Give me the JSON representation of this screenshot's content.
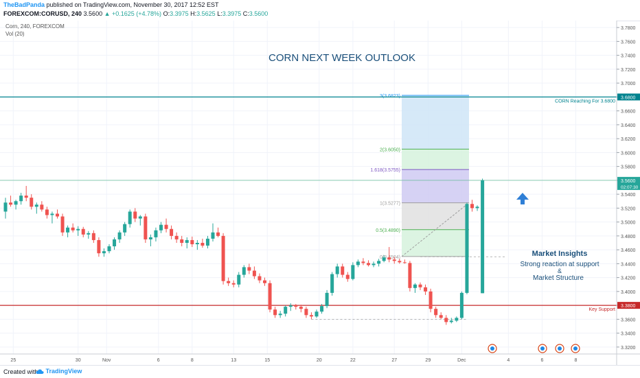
{
  "header": {
    "author": "TheBadPanda",
    "published": "published on TradingView.com, November 30, 2017 12:52 EST",
    "symbol": "FOREXCOM:CORUSD, 240",
    "last": "3.5600",
    "change": "▲ +0.1625 (+4.78%)",
    "o_label": "O:",
    "o_value": "3.3975",
    "h_label": "H:",
    "h_value": "3.5625",
    "l_label": "L:",
    "l_value": "3.3975",
    "c_label": "C:",
    "c_value": "3.5600"
  },
  "legend": {
    "symbol": "Corn, 240, FOREXCOM",
    "volume": "Vol (20)"
  },
  "footer": {
    "created": "Created with",
    "brand": "TradingView"
  },
  "colors": {
    "up": "#26a69a",
    "down": "#ef5350",
    "resistance": "#00838f",
    "support": "#c62828",
    "title": "#1a4f7a",
    "insight": "#1a4f7a",
    "arrow": "#2f7fd6"
  },
  "chart_data": {
    "type": "candlestick",
    "title": "CORN NEXT WEEK OUTLOOK",
    "ylim": [
      3.31,
      3.79
    ],
    "y_ticks": [
      "3.7800",
      "3.7600",
      "3.7400",
      "3.7200",
      "3.7000",
      "3.6800",
      "3.6600",
      "3.6400",
      "3.6200",
      "3.6000",
      "3.5800",
      "3.5600",
      "3.5400",
      "3.5200",
      "3.5000",
      "3.4800",
      "3.4600",
      "3.4400",
      "3.4200",
      "3.4000",
      "3.3800",
      "3.3600",
      "3.3400",
      "3.3200"
    ],
    "x_ticks": [
      {
        "label": "25",
        "pos": 1.5
      },
      {
        "label": "30",
        "pos": 14
      },
      {
        "label": "Nov",
        "pos": 19.5
      },
      {
        "label": "6",
        "pos": 29.5
      },
      {
        "label": "8",
        "pos": 36
      },
      {
        "label": "13",
        "pos": 44
      },
      {
        "label": "15",
        "pos": 50.5
      },
      {
        "label": "20",
        "pos": 60.5
      },
      {
        "label": "22",
        "pos": 67
      },
      {
        "label": "27",
        "pos": 75
      },
      {
        "label": "29",
        "pos": 81.5
      },
      {
        "label": "Dec",
        "pos": 88
      },
      {
        "label": "4",
        "pos": 97
      },
      {
        "label": "6",
        "pos": 103.5
      },
      {
        "label": "8",
        "pos": 110
      }
    ],
    "candles": [
      [
        3.515,
        3.535,
        3.505,
        3.528
      ],
      [
        3.528,
        3.538,
        3.522,
        3.525
      ],
      [
        3.525,
        3.532,
        3.518,
        3.53
      ],
      [
        3.53,
        3.542,
        3.525,
        3.538
      ],
      [
        3.538,
        3.552,
        3.53,
        3.535
      ],
      [
        3.535,
        3.54,
        3.518,
        3.522
      ],
      [
        3.522,
        3.528,
        3.512,
        3.525
      ],
      [
        3.525,
        3.53,
        3.515,
        3.518
      ],
      [
        3.518,
        3.522,
        3.505,
        3.51
      ],
      [
        3.51,
        3.515,
        3.498,
        3.512
      ],
      [
        3.512,
        3.518,
        3.505,
        3.508
      ],
      [
        3.508,
        3.512,
        3.48,
        3.485
      ],
      [
        3.485,
        3.495,
        3.478,
        3.492
      ],
      [
        3.492,
        3.498,
        3.485,
        3.488
      ],
      [
        3.488,
        3.494,
        3.48,
        3.49
      ],
      [
        3.49,
        3.493,
        3.478,
        3.482
      ],
      [
        3.482,
        3.487,
        3.476,
        3.484
      ],
      [
        3.484,
        3.488,
        3.47,
        3.474
      ],
      [
        3.474,
        3.478,
        3.45,
        3.455
      ],
      [
        3.455,
        3.462,
        3.45,
        3.458
      ],
      [
        3.458,
        3.468,
        3.455,
        3.465
      ],
      [
        3.465,
        3.478,
        3.46,
        3.475
      ],
      [
        3.475,
        3.488,
        3.47,
        3.485
      ],
      [
        3.485,
        3.5,
        3.48,
        3.497
      ],
      [
        3.497,
        3.518,
        3.492,
        3.515
      ],
      [
        3.515,
        3.52,
        3.5,
        3.505
      ],
      [
        3.505,
        3.51,
        3.495,
        3.508
      ],
      [
        3.508,
        3.512,
        3.47,
        3.475
      ],
      [
        3.475,
        3.482,
        3.465,
        3.478
      ],
      [
        3.478,
        3.492,
        3.472,
        3.488
      ],
      [
        3.488,
        3.5,
        3.484,
        3.496
      ],
      [
        3.496,
        3.505,
        3.485,
        3.49
      ],
      [
        3.49,
        3.495,
        3.475,
        3.48
      ],
      [
        3.48,
        3.485,
        3.47,
        3.475
      ],
      [
        3.475,
        3.48,
        3.465,
        3.47
      ],
      [
        3.47,
        3.478,
        3.462,
        3.474
      ],
      [
        3.474,
        3.479,
        3.464,
        3.468
      ],
      [
        3.468,
        3.474,
        3.46,
        3.47
      ],
      [
        3.47,
        3.476,
        3.463,
        3.466
      ],
      [
        3.466,
        3.48,
        3.462,
        3.476
      ],
      [
        3.476,
        3.498,
        3.472,
        3.485
      ],
      [
        3.485,
        3.492,
        3.478,
        3.48
      ],
      [
        3.48,
        3.484,
        3.41,
        3.415
      ],
      [
        3.415,
        3.42,
        3.408,
        3.412
      ],
      [
        3.412,
        3.416,
        3.406,
        3.41
      ],
      [
        3.41,
        3.428,
        3.406,
        3.424
      ],
      [
        3.424,
        3.438,
        3.42,
        3.435
      ],
      [
        3.435,
        3.44,
        3.425,
        3.43
      ],
      [
        3.43,
        3.436,
        3.418,
        3.422
      ],
      [
        3.422,
        3.426,
        3.412,
        3.416
      ],
      [
        3.416,
        3.42,
        3.408,
        3.412
      ],
      [
        3.412,
        3.416,
        3.37,
        3.374
      ],
      [
        3.374,
        3.378,
        3.362,
        3.366
      ],
      [
        3.366,
        3.372,
        3.362,
        3.368
      ],
      [
        3.368,
        3.38,
        3.364,
        3.378
      ],
      [
        3.378,
        3.383,
        3.372,
        3.38
      ],
      [
        3.38,
        3.382,
        3.374,
        3.378
      ],
      [
        3.378,
        3.381,
        3.37,
        3.375
      ],
      [
        3.375,
        3.378,
        3.362,
        3.366
      ],
      [
        3.366,
        3.37,
        3.36,
        3.364
      ],
      [
        3.364,
        3.374,
        3.362,
        3.371
      ],
      [
        3.371,
        3.382,
        3.368,
        3.379
      ],
      [
        3.379,
        3.402,
        3.376,
        3.398
      ],
      [
        3.398,
        3.428,
        3.394,
        3.425
      ],
      [
        3.425,
        3.44,
        3.42,
        3.436
      ],
      [
        3.436,
        3.44,
        3.42,
        3.424
      ],
      [
        3.424,
        3.428,
        3.414,
        3.418
      ],
      [
        3.418,
        3.442,
        3.416,
        3.438
      ],
      [
        3.438,
        3.446,
        3.435,
        3.443
      ],
      [
        3.443,
        3.448,
        3.438,
        3.441
      ],
      [
        3.441,
        3.445,
        3.436,
        3.438
      ],
      [
        3.438,
        3.443,
        3.435,
        3.44
      ],
      [
        3.44,
        3.447,
        3.436,
        3.444
      ],
      [
        3.444,
        3.452,
        3.442,
        3.449
      ],
      [
        3.449,
        3.464,
        3.442,
        3.446
      ],
      [
        3.446,
        3.45,
        3.44,
        3.444
      ],
      [
        3.444,
        3.447,
        3.44,
        3.442
      ],
      [
        3.442,
        3.446,
        3.44,
        3.441
      ],
      [
        3.441,
        3.444,
        3.4,
        3.405
      ],
      [
        3.405,
        3.412,
        3.398,
        3.41
      ],
      [
        3.41,
        3.413,
        3.402,
        3.406
      ],
      [
        3.406,
        3.41,
        3.395,
        3.4
      ],
      [
        3.4,
        3.404,
        3.37,
        3.375
      ],
      [
        3.375,
        3.378,
        3.362,
        3.366
      ],
      [
        3.366,
        3.37,
        3.36,
        3.362
      ],
      [
        3.362,
        3.366,
        3.352,
        3.356
      ],
      [
        3.356,
        3.362,
        3.354,
        3.358
      ],
      [
        3.358,
        3.364,
        3.356,
        3.362
      ],
      [
        3.362,
        3.4,
        3.36,
        3.398
      ],
      [
        3.398,
        3.528,
        3.396,
        3.526
      ],
      [
        3.526,
        3.532,
        3.515,
        3.52
      ],
      [
        3.52,
        3.524,
        3.516,
        3.522
      ],
      [
        3.3975,
        3.5625,
        3.3975,
        3.56
      ]
    ],
    "fib": {
      "levels": [
        {
          "ratio": "0",
          "value": 3.4504,
          "label": "0(3.4504)"
        },
        {
          "ratio": "0.5",
          "value": 3.489,
          "label": "0.5(3.4890)"
        },
        {
          "ratio": "1",
          "value": 3.5277,
          "label": "1(3.5277)"
        },
        {
          "ratio": "1.618",
          "value": 3.5755,
          "label": "1.618(3.5755)"
        },
        {
          "ratio": "2",
          "value": 3.605,
          "label": "2(3.6050)"
        },
        {
          "ratio": "3",
          "value": 3.6823,
          "label": "3(3.6823)"
        }
      ]
    },
    "resistance": {
      "value": 3.68,
      "label": "CORN Reaching For 3.6800",
      "axis_label": "3.6800"
    },
    "support": {
      "value": 3.38,
      "label": "Key Support",
      "axis_label": "3.3800"
    },
    "price_line": {
      "value": 3.56,
      "axis_label": "3.5600",
      "timer": "02:07:30"
    },
    "insights": {
      "title": "Market Insights",
      "line1": "Strong reaction at support",
      "line2": "&",
      "line3": "Market Structure"
    }
  }
}
